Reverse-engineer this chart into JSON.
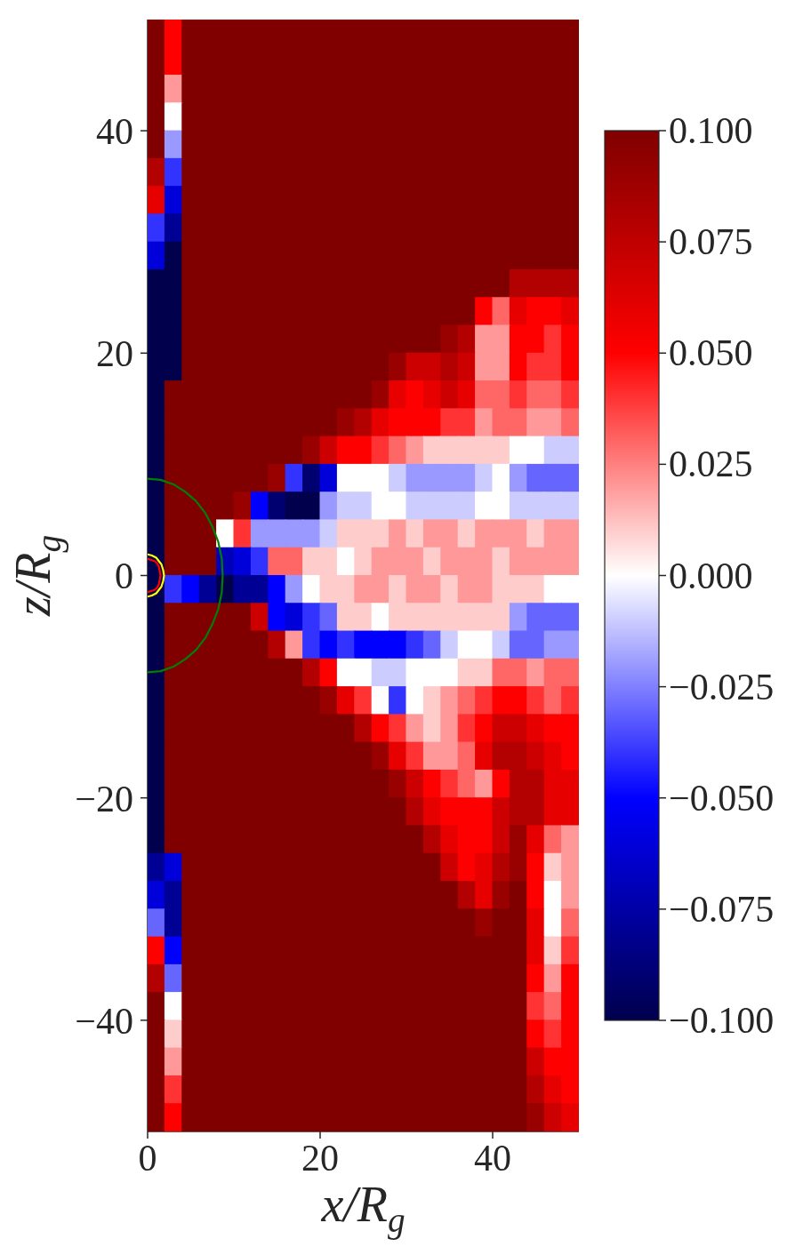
{
  "chart_data": {
    "type": "heatmap",
    "xlabel": "x/R$_{g}$",
    "ylabel": "z/R$_{g}$",
    "x": [
      1,
      3,
      5,
      7,
      9,
      11,
      13,
      15,
      17,
      19,
      21,
      23,
      25,
      27,
      29,
      31,
      33,
      35,
      37,
      39,
      41,
      43,
      45,
      47,
      49
    ],
    "cells": [
      [
        0.1,
        0.05,
        0.1,
        0.1,
        0.1,
        0.1,
        0.1,
        0.1,
        0.1,
        0.1,
        0.1,
        0.1,
        0.1,
        0.1,
        0.1,
        0.1,
        0.1,
        0.1,
        0.1,
        0.1,
        0.1,
        0.1,
        0.1,
        0.1,
        0.1
      ],
      [
        0.1,
        0.05,
        0.1,
        0.1,
        0.1,
        0.1,
        0.1,
        0.1,
        0.1,
        0.1,
        0.1,
        0.1,
        0.1,
        0.1,
        0.1,
        0.1,
        0.1,
        0.1,
        0.1,
        0.1,
        0.1,
        0.1,
        0.1,
        0.1,
        0.1
      ],
      [
        0.1,
        0.02,
        0.1,
        0.1,
        0.1,
        0.1,
        0.1,
        0.1,
        0.1,
        0.1,
        0.1,
        0.1,
        0.1,
        0.1,
        0.1,
        0.1,
        0.1,
        0.1,
        0.1,
        0.1,
        0.1,
        0.1,
        0.1,
        0.1,
        0.1
      ],
      [
        0.1,
        0,
        0.1,
        0.1,
        0.1,
        0.1,
        0.1,
        0.1,
        0.1,
        0.1,
        0.1,
        0.1,
        0.1,
        0.1,
        0.1,
        0.1,
        0.1,
        0.1,
        0.1,
        0.1,
        0.1,
        0.1,
        0.1,
        0.1,
        0.1
      ],
      [
        0.1,
        -0.02,
        0.1,
        0.1,
        0.1,
        0.1,
        0.1,
        0.1,
        0.1,
        0.1,
        0.1,
        0.1,
        0.1,
        0.1,
        0.1,
        0.1,
        0.1,
        0.1,
        0.1,
        0.1,
        0.1,
        0.1,
        0.1,
        0.1,
        0.1
      ],
      [
        0.08,
        -0.04,
        0.1,
        0.1,
        0.1,
        0.1,
        0.1,
        0.1,
        0.1,
        0.1,
        0.1,
        0.1,
        0.1,
        0.1,
        0.1,
        0.1,
        0.1,
        0.1,
        0.1,
        0.1,
        0.1,
        0.1,
        0.1,
        0.1,
        0.1
      ],
      [
        0.06,
        -0.06,
        0.1,
        0.1,
        0.1,
        0.1,
        0.1,
        0.1,
        0.1,
        0.1,
        0.1,
        0.1,
        0.1,
        0.1,
        0.1,
        0.1,
        0.1,
        0.1,
        0.1,
        0.1,
        0.1,
        0.1,
        0.1,
        0.1,
        0.1
      ],
      [
        -0.04,
        -0.08,
        0.1,
        0.1,
        0.1,
        0.1,
        0.1,
        0.1,
        0.1,
        0.1,
        0.1,
        0.1,
        0.1,
        0.1,
        0.1,
        0.1,
        0.1,
        0.1,
        0.1,
        0.1,
        0.1,
        0.1,
        0.1,
        0.1,
        0.1
      ],
      [
        -0.06,
        -0.1,
        0.1,
        0.1,
        0.1,
        0.1,
        0.1,
        0.1,
        0.1,
        0.1,
        0.1,
        0.1,
        0.1,
        0.1,
        0.1,
        0.1,
        0.1,
        0.1,
        0.1,
        0.1,
        0.1,
        0.1,
        0.1,
        0.1,
        0.1
      ],
      [
        -0.1,
        -0.1,
        0.1,
        0.1,
        0.1,
        0.1,
        0.1,
        0.1,
        0.1,
        0.1,
        0.1,
        0.1,
        0.1,
        0.1,
        0.1,
        0.1,
        0.1,
        0.1,
        0.1,
        0.1,
        0.1,
        0.08,
        0.08,
        0.08,
        0.08
      ],
      [
        -0.1,
        -0.1,
        0.1,
        0.1,
        0.1,
        0.1,
        0.1,
        0.1,
        0.1,
        0.1,
        0.1,
        0.1,
        0.1,
        0.1,
        0.1,
        0.1,
        0.1,
        0.1,
        0.1,
        0.05,
        0.03,
        0.06,
        0.05,
        0.05,
        0.06
      ],
      [
        -0.1,
        -0.1,
        0.1,
        0.1,
        0.1,
        0.1,
        0.1,
        0.1,
        0.1,
        0.1,
        0.1,
        0.1,
        0.1,
        0.1,
        0.1,
        0.1,
        0.1,
        0.09,
        0.08,
        0.02,
        0.02,
        0.05,
        0.05,
        0.04,
        0.05
      ],
      [
        -0.1,
        -0.1,
        0.1,
        0.1,
        0.1,
        0.1,
        0.1,
        0.1,
        0.1,
        0.1,
        0.1,
        0.1,
        0.1,
        0.1,
        0.09,
        0.07,
        0.07,
        0.08,
        0.07,
        0.02,
        0.02,
        0.05,
        0.04,
        0.04,
        0.05
      ],
      [
        -0.1,
        0.1,
        0.1,
        0.1,
        0.1,
        0.1,
        0.1,
        0.1,
        0.1,
        0.1,
        0.1,
        0.1,
        0.1,
        0.09,
        0.06,
        0.05,
        0.06,
        0.07,
        0.06,
        0.03,
        0.03,
        0.04,
        0.03,
        0.03,
        0.04
      ],
      [
        -0.1,
        0.1,
        0.1,
        0.1,
        0.1,
        0.1,
        0.1,
        0.1,
        0.1,
        0.1,
        0.1,
        0.09,
        0.08,
        0.06,
        0.05,
        0.05,
        0.05,
        0.04,
        0.04,
        0.02,
        0.03,
        0.03,
        0.02,
        0.02,
        0.03
      ],
      [
        -0.1,
        0.1,
        0.1,
        0.1,
        0.1,
        0.1,
        0.1,
        0.1,
        0.1,
        0.09,
        0.07,
        0.05,
        0.05,
        0.04,
        0.03,
        0.02,
        0.01,
        0.01,
        0.01,
        0.01,
        0.01,
        0,
        0,
        -0.01,
        -0.01
      ],
      [
        -0.1,
        0.1,
        0.1,
        0.1,
        0.1,
        0.1,
        0.1,
        0.09,
        -0.04,
        -0.09,
        -0.06,
        0,
        0,
        0,
        -0.01,
        -0.02,
        -0.02,
        -0.02,
        -0.02,
        -0.01,
        0,
        -0.02,
        -0.03,
        -0.03,
        -0.03
      ],
      [
        -0.1,
        0.1,
        0.1,
        0.1,
        0.1,
        0.09,
        -0.05,
        -0.09,
        -0.1,
        -0.1,
        -0.02,
        -0.01,
        -0.01,
        0,
        0,
        -0.01,
        -0.01,
        -0.01,
        -0.01,
        0,
        0,
        -0.01,
        -0.01,
        -0.01,
        -0.01
      ],
      [
        -0.1,
        0.1,
        0.1,
        0.1,
        0,
        0.04,
        -0.02,
        -0.02,
        -0.02,
        -0.02,
        -0.01,
        0.01,
        0.01,
        0.01,
        0.02,
        0.01,
        0.02,
        0.02,
        0.01,
        0.02,
        0.02,
        0.02,
        0.01,
        0.02,
        0.02
      ],
      [
        -0.1,
        0.1,
        0.1,
        0.1,
        -0.07,
        -0.06,
        -0.04,
        0.03,
        0.03,
        0.01,
        0.01,
        0,
        0.01,
        0.02,
        0.02,
        0.02,
        0.01,
        0.02,
        0.02,
        0.02,
        0.01,
        0.02,
        0.02,
        0.02,
        0.02
      ],
      [
        -0.1,
        -0.04,
        -0.05,
        -0.08,
        -0.1,
        -0.08,
        -0.08,
        -0.05,
        -0.02,
        0,
        0.01,
        0.01,
        0.02,
        0.02,
        0.01,
        0.02,
        0.02,
        0.01,
        0.02,
        0.02,
        0.01,
        0.01,
        0.01,
        0,
        0
      ],
      [
        -0.1,
        0.1,
        0.1,
        0.1,
        0.1,
        0.1,
        0.07,
        -0.05,
        -0.06,
        -0.04,
        -0.03,
        0.01,
        0.01,
        0,
        0.01,
        0.01,
        0.01,
        0.01,
        0.01,
        0.01,
        0.01,
        -0.02,
        -0.03,
        -0.03,
        -0.03
      ],
      [
        -0.1,
        0.1,
        0.1,
        0.1,
        0.1,
        0.1,
        0.1,
        0.08,
        0.02,
        -0.04,
        -0.05,
        -0.04,
        -0.05,
        -0.05,
        -0.05,
        -0.04,
        -0.03,
        -0.01,
        0,
        0,
        -0.01,
        -0.03,
        -0.03,
        -0.02,
        -0.02
      ],
      [
        -0.1,
        0.1,
        0.1,
        0.1,
        0.1,
        0.1,
        0.1,
        0.1,
        0.1,
        0.08,
        0.05,
        0,
        0,
        -0.01,
        -0.01,
        0,
        0,
        0,
        0.01,
        0.01,
        0.03,
        0.03,
        0.02,
        0.03,
        0.03
      ],
      [
        -0.1,
        0.1,
        0.1,
        0.1,
        0.1,
        0.1,
        0.1,
        0.1,
        0.1,
        0.1,
        0.09,
        0.06,
        0.04,
        0,
        -0.04,
        0,
        0.01,
        0.02,
        0.03,
        0.04,
        0.05,
        0.05,
        0.04,
        0.03,
        0.04
      ],
      [
        -0.1,
        0.1,
        0.1,
        0.1,
        0.1,
        0.1,
        0.1,
        0.1,
        0.1,
        0.1,
        0.1,
        0.1,
        0.08,
        0.05,
        0.04,
        0.02,
        0.01,
        0.02,
        0.04,
        0.05,
        0.07,
        0.07,
        0.06,
        0.05,
        0.05
      ],
      [
        -0.1,
        0.1,
        0.1,
        0.1,
        0.1,
        0.1,
        0.1,
        0.1,
        0.1,
        0.1,
        0.1,
        0.1,
        0.1,
        0.09,
        0.06,
        0.04,
        0.02,
        0.02,
        0.03,
        0.06,
        0.08,
        0.08,
        0.07,
        0.06,
        0.05
      ],
      [
        -0.1,
        0.1,
        0.1,
        0.1,
        0.1,
        0.1,
        0.1,
        0.1,
        0.1,
        0.1,
        0.1,
        0.1,
        0.1,
        0.1,
        0.09,
        0.07,
        0.05,
        0.04,
        0.03,
        0.02,
        0.05,
        0.08,
        0.08,
        0.06,
        0.06
      ],
      [
        -0.1,
        0.1,
        0.1,
        0.1,
        0.1,
        0.1,
        0.1,
        0.1,
        0.1,
        0.1,
        0.1,
        0.1,
        0.1,
        0.1,
        0.1,
        0.08,
        0.06,
        0.05,
        0.05,
        0.05,
        0.07,
        0.08,
        0.08,
        0.06,
        0.06
      ],
      [
        -0.1,
        0.1,
        0.1,
        0.1,
        0.1,
        0.1,
        0.1,
        0.1,
        0.1,
        0.1,
        0.1,
        0.1,
        0.1,
        0.1,
        0.1,
        0.1,
        0.08,
        0.06,
        0.05,
        0.05,
        0.07,
        0.09,
        0.06,
        0.03,
        0.02
      ],
      [
        -0.08,
        -0.06,
        0.1,
        0.1,
        0.1,
        0.1,
        0.1,
        0.1,
        0.1,
        0.1,
        0.1,
        0.1,
        0.1,
        0.1,
        0.1,
        0.1,
        0.1,
        0.07,
        0.05,
        0.06,
        0.08,
        0.09,
        0.05,
        0.01,
        0.02
      ],
      [
        -0.06,
        -0.08,
        0.1,
        0.1,
        0.1,
        0.1,
        0.1,
        0.1,
        0.1,
        0.1,
        0.1,
        0.1,
        0.1,
        0.1,
        0.1,
        0.1,
        0.1,
        0.1,
        0.08,
        0.06,
        0.09,
        0.1,
        0.05,
        0,
        0.02
      ],
      [
        -0.03,
        -0.08,
        0.1,
        0.1,
        0.1,
        0.1,
        0.1,
        0.1,
        0.1,
        0.1,
        0.1,
        0.1,
        0.1,
        0.1,
        0.1,
        0.1,
        0.1,
        0.1,
        0.1,
        0.09,
        0.1,
        0.1,
        0.06,
        0,
        0.03
      ],
      [
        0.05,
        -0.05,
        0.1,
        0.1,
        0.1,
        0.1,
        0.1,
        0.1,
        0.1,
        0.1,
        0.1,
        0.1,
        0.1,
        0.1,
        0.1,
        0.1,
        0.1,
        0.1,
        0.1,
        0.1,
        0.1,
        0.1,
        0.06,
        0.01,
        0.04
      ],
      [
        0.08,
        -0.03,
        0.1,
        0.1,
        0.1,
        0.1,
        0.1,
        0.1,
        0.1,
        0.1,
        0.1,
        0.1,
        0.1,
        0.1,
        0.1,
        0.1,
        0.1,
        0.1,
        0.1,
        0.1,
        0.1,
        0.1,
        0.05,
        0.02,
        0.05
      ],
      [
        0.1,
        0,
        0.1,
        0.1,
        0.1,
        0.1,
        0.1,
        0.1,
        0.1,
        0.1,
        0.1,
        0.1,
        0.1,
        0.1,
        0.1,
        0.1,
        0.1,
        0.1,
        0.1,
        0.1,
        0.1,
        0.1,
        0.04,
        0.03,
        0.05
      ],
      [
        0.1,
        0.01,
        0.1,
        0.1,
        0.1,
        0.1,
        0.1,
        0.1,
        0.1,
        0.1,
        0.1,
        0.1,
        0.1,
        0.1,
        0.1,
        0.1,
        0.1,
        0.1,
        0.1,
        0.1,
        0.1,
        0.1,
        0.05,
        0.04,
        0.05
      ],
      [
        0.1,
        0.02,
        0.1,
        0.1,
        0.1,
        0.1,
        0.1,
        0.1,
        0.1,
        0.1,
        0.1,
        0.1,
        0.1,
        0.1,
        0.1,
        0.1,
        0.1,
        0.1,
        0.1,
        0.1,
        0.1,
        0.1,
        0.07,
        0.05,
        0.05
      ],
      [
        0.1,
        0.04,
        0.1,
        0.1,
        0.1,
        0.1,
        0.1,
        0.1,
        0.1,
        0.1,
        0.1,
        0.1,
        0.1,
        0.1,
        0.1,
        0.1,
        0.1,
        0.1,
        0.1,
        0.1,
        0.1,
        0.1,
        0.08,
        0.06,
        0.05
      ],
      [
        0.1,
        0.05,
        0.1,
        0.1,
        0.1,
        0.1,
        0.1,
        0.1,
        0.1,
        0.1,
        0.1,
        0.1,
        0.1,
        0.1,
        0.1,
        0.1,
        0.1,
        0.1,
        0.1,
        0.1,
        0.1,
        0.1,
        0.09,
        0.07,
        0.06
      ]
    ],
    "xlim": [
      0,
      50
    ],
    "ylim": [
      -50,
      50
    ],
    "xticks": [
      0,
      20,
      40
    ],
    "yticks": [
      {
        "value": -40,
        "label": "−40"
      },
      {
        "value": -20,
        "label": "−20"
      },
      0,
      20,
      40
    ],
    "clim": [
      -0.1,
      0.1
    ],
    "cticks": [
      {
        "value": -0.1,
        "label": "−0.100"
      },
      {
        "value": -0.075,
        "label": "−0.075"
      },
      {
        "value": -0.05,
        "label": "−0.050"
      },
      {
        "value": -0.025,
        "label": "−0.025"
      },
      {
        "value": 0,
        "label": "0.000"
      },
      {
        "value": 0.025,
        "label": "0.025"
      },
      {
        "value": 0.05,
        "label": "0.050"
      },
      {
        "value": 0.075,
        "label": "0.075"
      },
      {
        "value": 0.1,
        "label": "0.100"
      }
    ],
    "series": [
      {
        "type": "line",
        "color": "#008000",
        "x": [
          0,
          1.5,
          3.0,
          4.4,
          5.6,
          6.7,
          7.5,
          8.2,
          8.6,
          8.7,
          8.6,
          8.2,
          7.5,
          6.7,
          5.6,
          4.4,
          3.0,
          1.5,
          0
        ],
        "values": [
          8.7,
          8.6,
          8.2,
          7.5,
          6.7,
          5.6,
          4.4,
          3.0,
          1.5,
          0,
          -1.5,
          -3.0,
          -4.4,
          -5.6,
          -6.7,
          -7.5,
          -8.2,
          -8.6,
          -8.7
        ]
      },
      {
        "type": "line",
        "color": "#ff0000",
        "x": [
          0,
          0.4,
          0.8,
          1.1,
          1.3,
          1.4,
          1.5,
          1.4,
          1.3,
          1.1,
          0.8,
          0.4,
          0
        ],
        "values": [
          1.5,
          1.4,
          1.3,
          1.1,
          0.8,
          0.4,
          0,
          -0.4,
          -0.8,
          -1.1,
          -1.3,
          -1.4,
          -1.5
        ]
      },
      {
        "type": "line",
        "color": "#ffff00",
        "x": [
          0,
          0.5,
          1.0,
          1.3,
          1.6,
          1.8,
          1.9,
          1.8,
          1.6,
          1.3,
          1.0,
          0.5,
          0
        ],
        "values": [
          1.9,
          1.8,
          1.6,
          1.3,
          1.0,
          0.5,
          0,
          -0.5,
          -1.0,
          -1.3,
          -1.6,
          -1.8,
          -1.9
        ]
      }
    ]
  }
}
